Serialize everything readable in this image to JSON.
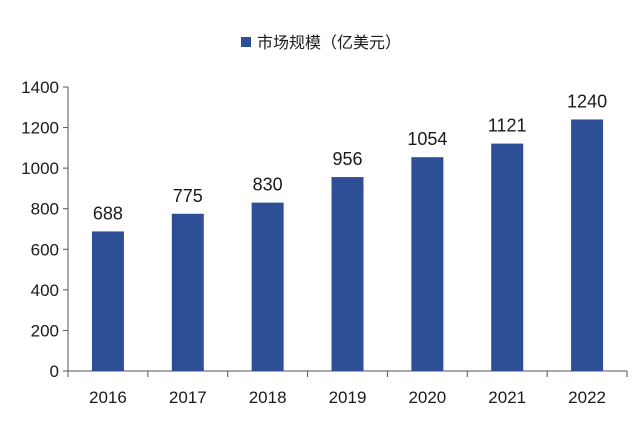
{
  "chart_data": {
    "type": "bar",
    "title": "",
    "xlabel": "",
    "ylabel": "",
    "categories": [
      "2016",
      "2017",
      "2018",
      "2019",
      "2020",
      "2021",
      "2022"
    ],
    "series": [
      {
        "name": "市场规模（亿美元）",
        "values": [
          688,
          775,
          830,
          956,
          1054,
          1121,
          1240
        ],
        "color": "#2e4f96"
      }
    ],
    "ylim": [
      0,
      1400
    ],
    "yticks": [
      0,
      200,
      400,
      600,
      800,
      1000,
      1200,
      1400
    ],
    "grid": false,
    "legend": {
      "position": "top-center"
    },
    "data_labels": true
  }
}
